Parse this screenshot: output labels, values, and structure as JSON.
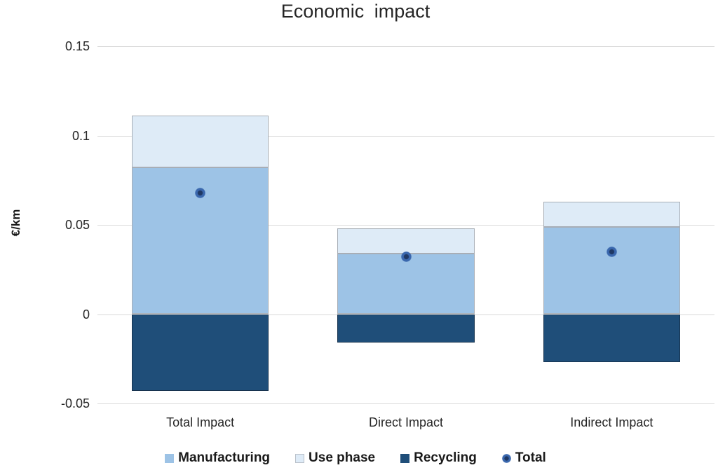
{
  "chart_data": {
    "type": "bar",
    "stacked": true,
    "title": "Economic impact",
    "ylabel": "€/km",
    "xlabel": "",
    "categories": [
      "Total Impact",
      "Direct Impact",
      "Indirect Impact"
    ],
    "series": [
      {
        "name": "Manufacturing",
        "color": "#9DC3E6",
        "values": [
          0.082,
          0.034,
          0.049
        ]
      },
      {
        "name": "Use phase",
        "color": "#DEEBF7",
        "values": [
          0.029,
          0.014,
          0.014
        ]
      },
      {
        "name": "Recycling",
        "color": "#1F4E79",
        "values": [
          -0.043,
          -0.016,
          -0.027
        ]
      }
    ],
    "marker_series": {
      "name": "Total",
      "color_outer": "#3A67AD",
      "color_inner": "#1F3864",
      "values": [
        0.068,
        0.032,
        0.035
      ]
    },
    "ylim": [
      -0.05,
      0.15
    ],
    "yticks": [
      0.15,
      0.1,
      0.05,
      0,
      -0.05
    ],
    "ytick_labels": [
      "0.15",
      "0.1",
      "0.05",
      "0",
      "-0.05"
    ],
    "grid": true,
    "gridline_color": "#D9D9D9",
    "legend_position": "bottom",
    "legend": [
      "Manufacturing",
      "Use phase",
      "Recycling",
      "Total"
    ]
  }
}
